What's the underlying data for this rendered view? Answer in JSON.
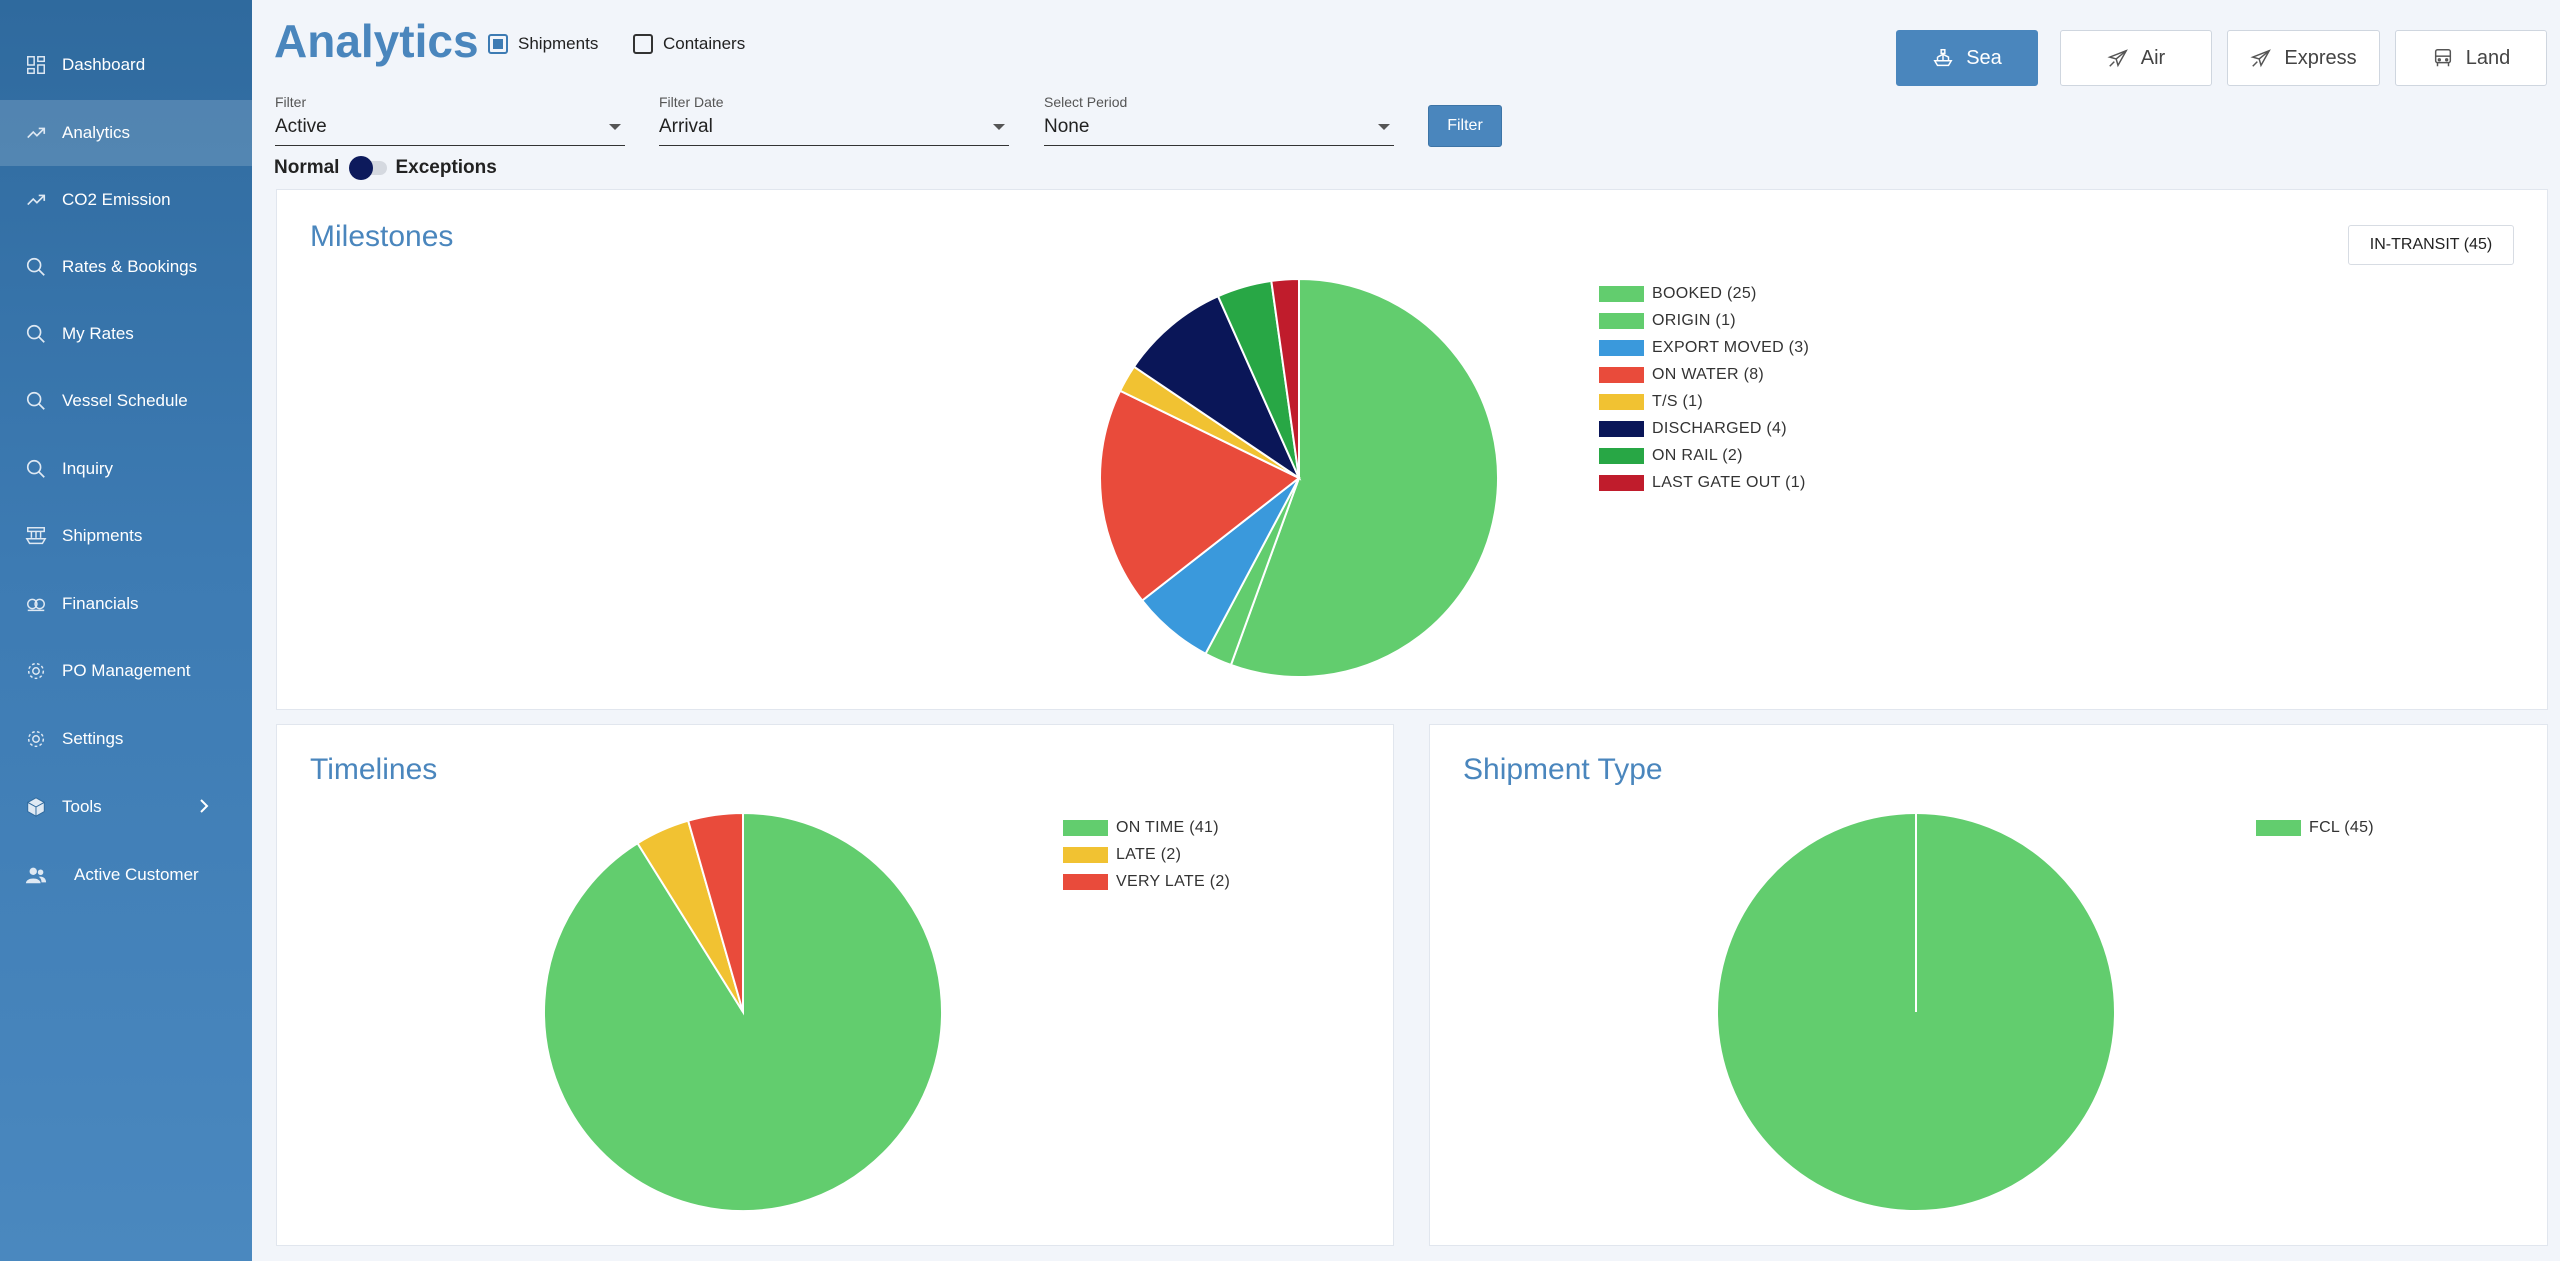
{
  "sidebar": {
    "items": [
      {
        "label": "Dashboard",
        "icon": "dashboard-icon",
        "active": false
      },
      {
        "label": "Analytics",
        "icon": "trending-up-icon",
        "active": true
      },
      {
        "label": "CO2 Emission",
        "icon": "trending-up-icon",
        "active": false
      },
      {
        "label": "Rates & Bookings",
        "icon": "search-icon",
        "active": false
      },
      {
        "label": "My Rates",
        "icon": "search-icon",
        "active": false
      },
      {
        "label": "Vessel Schedule",
        "icon": "search-icon",
        "active": false
      },
      {
        "label": "Inquiry",
        "icon": "search-icon",
        "active": false
      },
      {
        "label": "Shipments",
        "icon": "ship-icon",
        "active": false
      },
      {
        "label": "Financials",
        "icon": "money-icon",
        "active": false
      },
      {
        "label": "PO Management",
        "icon": "gear-icon",
        "active": false
      },
      {
        "label": "Settings",
        "icon": "gear-icon",
        "active": false
      },
      {
        "label": "Tools",
        "icon": "cube-icon",
        "active": false
      },
      {
        "label": "Active Customer",
        "icon": "users-icon",
        "active": false
      }
    ]
  },
  "header": {
    "title": "Analytics",
    "shipments_label": "Shipments",
    "shipments_checked": true,
    "containers_label": "Containers",
    "containers_checked": false
  },
  "modes": [
    {
      "label": "Sea",
      "icon": "ship-icon",
      "active": true
    },
    {
      "label": "Air",
      "icon": "plane-icon",
      "active": false
    },
    {
      "label": "Express",
      "icon": "plane-icon",
      "active": false
    },
    {
      "label": "Land",
      "icon": "truck-icon",
      "active": false
    }
  ],
  "filters": {
    "filter": {
      "label": "Filter",
      "value": "Active"
    },
    "filter_date": {
      "label": "Filter Date",
      "value": "Arrival"
    },
    "select_period": {
      "label": "Select Period",
      "value": "None"
    },
    "button_label": "Filter"
  },
  "toggle": {
    "left_label": "Normal",
    "right_label": "Exceptions"
  },
  "milestones": {
    "title": "Milestones",
    "badge": "IN-TRANSIT (45)"
  },
  "timelines": {
    "title": "Timelines"
  },
  "shipment_type": {
    "title": "Shipment Type"
  },
  "chart_data": [
    {
      "type": "pie",
      "title": "Milestones",
      "categories": [
        "BOOKED (25)",
        "ORIGIN (1)",
        "EXPORT MOVED (3)",
        "ON WATER (8)",
        "T/S (1)",
        "DISCHARGED (4)",
        "ON RAIL (2)",
        "LAST GATE OUT (1)"
      ],
      "values": [
        25,
        1,
        3,
        8,
        1,
        4,
        2,
        1
      ],
      "colors": [
        "#62cd6e",
        "#62cd6e",
        "#3a99dc",
        "#e94b3b",
        "#f1c232",
        "#0a1658",
        "#28a745",
        "#c01c2c"
      ],
      "legend": "right"
    },
    {
      "type": "pie",
      "title": "Timelines",
      "categories": [
        "ON TIME (41)",
        "LATE (2)",
        "VERY LATE (2)"
      ],
      "values": [
        41,
        2,
        2
      ],
      "colors": [
        "#62cd6e",
        "#f1c232",
        "#e94b3b"
      ],
      "legend": "right"
    },
    {
      "type": "pie",
      "title": "Shipment Type",
      "categories": [
        "FCL (45)"
      ],
      "values": [
        45
      ],
      "colors": [
        "#62cd6e"
      ],
      "legend": "right"
    }
  ]
}
